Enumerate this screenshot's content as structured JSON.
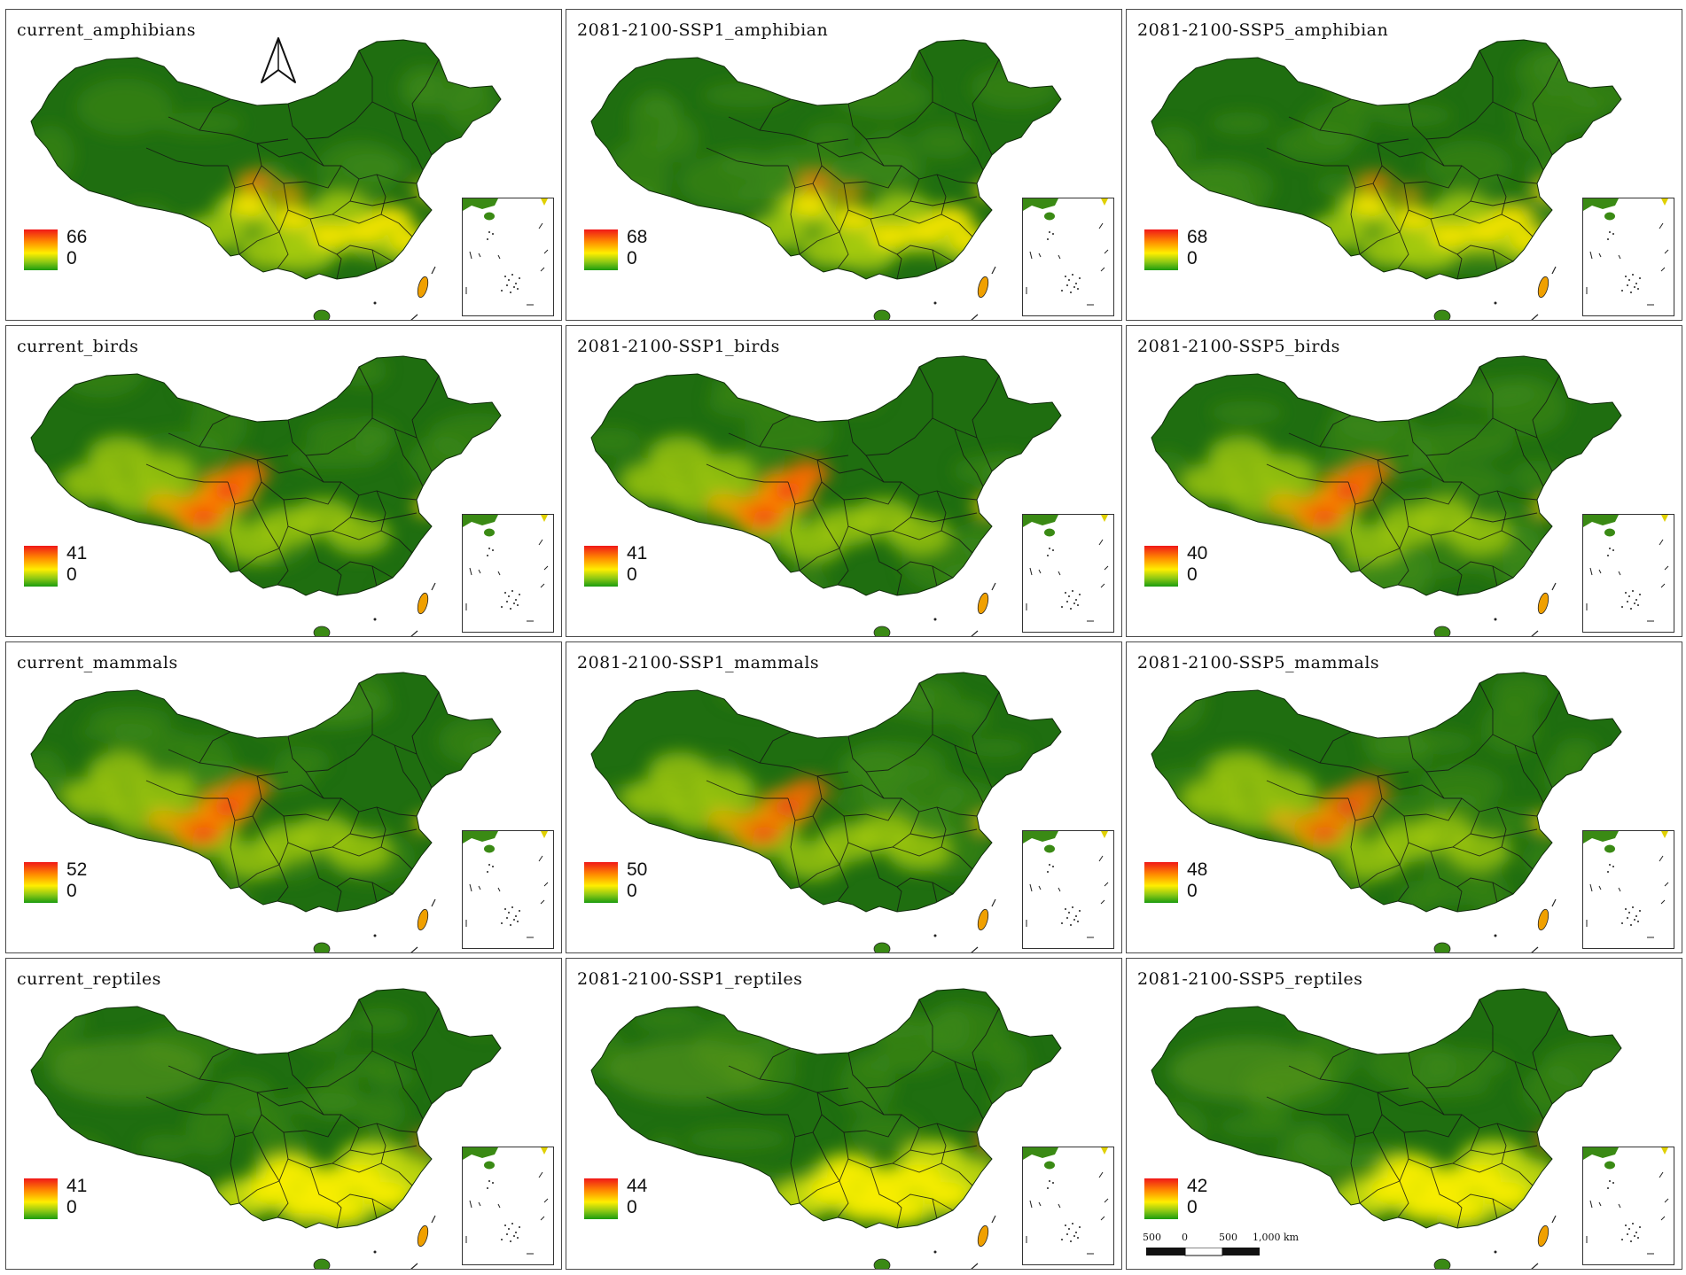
{
  "panels": [
    {
      "title": "current_amphibians",
      "legend": {
        "max": "66",
        "min": "0"
      },
      "hotspot": 0.8,
      "spread": "south"
    },
    {
      "title": "2081-2100-SSP1_amphibian",
      "legend": {
        "max": "68",
        "min": "0"
      },
      "hotspot": 0.75,
      "spread": "south"
    },
    {
      "title": "2081-2100-SSP5_amphibian",
      "legend": {
        "max": "68",
        "min": "0"
      },
      "hotspot": 0.7,
      "spread": "south"
    },
    {
      "title": "current_birds",
      "legend": {
        "max": "41",
        "min": "0"
      },
      "hotspot": 1.0,
      "spread": "central"
    },
    {
      "title": "2081-2100-SSP1_birds",
      "legend": {
        "max": "41",
        "min": "0"
      },
      "hotspot": 1.0,
      "spread": "central"
    },
    {
      "title": "2081-2100-SSP5_birds",
      "legend": {
        "max": "40",
        "min": "0"
      },
      "hotspot": 0.95,
      "spread": "central"
    },
    {
      "title": "current_mammals",
      "legend": {
        "max": "52",
        "min": "0"
      },
      "hotspot": 0.95,
      "spread": "central"
    },
    {
      "title": "2081-2100-SSP1_mammals",
      "legend": {
        "max": "50",
        "min": "0"
      },
      "hotspot": 0.85,
      "spread": "central"
    },
    {
      "title": "2081-2100-SSP5_mammals",
      "legend": {
        "max": "48",
        "min": "0"
      },
      "hotspot": 0.8,
      "spread": "central"
    },
    {
      "title": "current_reptiles",
      "legend": {
        "max": "41",
        "min": "0"
      },
      "hotspot": 0.3,
      "spread": "southeast"
    },
    {
      "title": "2081-2100-SSP1_reptiles",
      "legend": {
        "max": "44",
        "min": "0"
      },
      "hotspot": 0.35,
      "spread": "southeast"
    },
    {
      "title": "2081-2100-SSP5_reptiles",
      "legend": {
        "max": "42",
        "min": "0"
      },
      "hotspot": 0.35,
      "spread": "southeast"
    }
  ],
  "scale_bar": {
    "labels": [
      "500",
      "0",
      "500",
      "1,000 km"
    ]
  },
  "colors": {
    "low": "#1c6b0e",
    "mid": "#ffee00",
    "high": "#f01818",
    "boundary": "#1a1a1a"
  },
  "north_arrow": "north-arrow-icon"
}
